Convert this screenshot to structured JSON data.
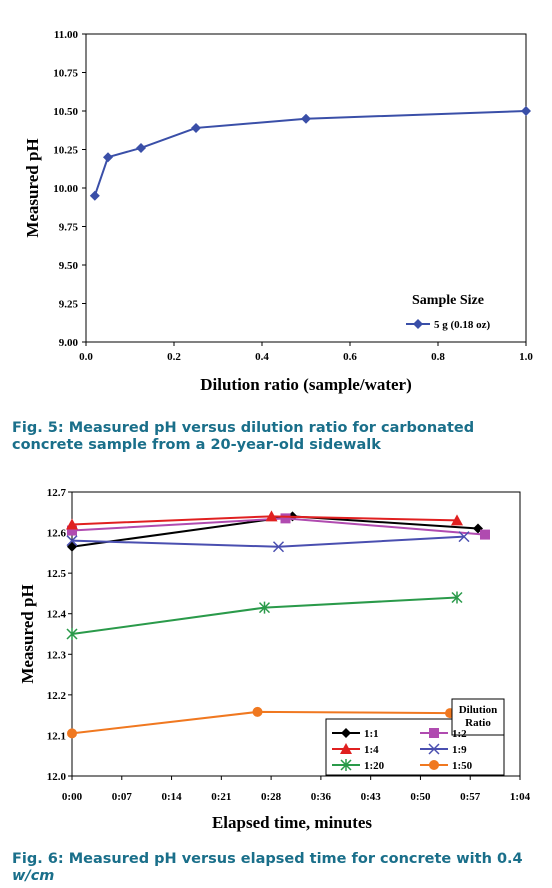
{
  "figures": [
    {
      "caption": "Fig. 5: Measured pH versus dilution ratio for carbonated concrete sample from a 20-year-old sidewalk"
    },
    {
      "caption_prefix": "Fig. 6: Measured pH versus elapsed time for concrete with 0.4 ",
      "caption_italic": "w/cm"
    }
  ],
  "colors": {
    "caption": "#1a6f8a",
    "fig5_series": "#3a4fa8"
  },
  "chart_data": [
    {
      "type": "line",
      "title": "",
      "xlabel": "Dilution ratio (sample/water)",
      "ylabel": "Measured pH",
      "xlim": [
        0,
        1.0
      ],
      "ylim": [
        9.0,
        11.0
      ],
      "x_ticks": [
        "0.0",
        "0.2",
        "0.4",
        "0.6",
        "0.8",
        "1.0"
      ],
      "y_ticks": [
        "9.00",
        "9.25",
        "9.50",
        "9.75",
        "10.00",
        "10.25",
        "10.50",
        "10.75",
        "11.00"
      ],
      "grid": false,
      "legend": {
        "title": "Sample Size",
        "position": "bottom-right"
      },
      "series": [
        {
          "name": "5 g (0.18 oz)",
          "color": "#3a4fa8",
          "marker": "diamond",
          "x": [
            0.02,
            0.05,
            0.125,
            0.25,
            0.5,
            1.0
          ],
          "y": [
            9.95,
            10.2,
            10.26,
            10.39,
            10.45,
            10.5
          ]
        }
      ]
    },
    {
      "type": "line",
      "title": "",
      "xlabel": "Elapsed time, minutes",
      "ylabel": "Measured pH",
      "xlim": [
        0,
        64
      ],
      "ylim": [
        12.0,
        12.7
      ],
      "x_ticks": [
        "0:00",
        "0:07",
        "0:14",
        "0:21",
        "0:28",
        "0:36",
        "0:43",
        "0:50",
        "0:57",
        "1:04"
      ],
      "y_ticks": [
        "12.0",
        "12.1",
        "12.2",
        "12.3",
        "12.4",
        "12.5",
        "12.6",
        "12.7"
      ],
      "grid": false,
      "legend": {
        "title": "Dilution\nRatio",
        "position": "bottom-right"
      },
      "series": [
        {
          "name": "1:1",
          "color": "#000000",
          "marker": "diamond",
          "x": [
            0,
            31.5,
            58
          ],
          "y": [
            12.565,
            12.64,
            12.61
          ]
        },
        {
          "name": "1:2",
          "color": "#b04bb0",
          "marker": "square",
          "x": [
            0,
            30.5,
            59
          ],
          "y": [
            12.605,
            12.635,
            12.595
          ]
        },
        {
          "name": "1:4",
          "color": "#e02020",
          "marker": "triangle",
          "x": [
            0,
            28.5,
            55
          ],
          "y": [
            12.62,
            12.64,
            12.63
          ]
        },
        {
          "name": "1:9",
          "color": "#4a4fb0",
          "marker": "x",
          "x": [
            0,
            29.5,
            56
          ],
          "y": [
            12.58,
            12.565,
            12.59
          ]
        },
        {
          "name": "1:20",
          "color": "#2a9a4a",
          "marker": "star",
          "x": [
            0,
            27.5,
            55
          ],
          "y": [
            12.35,
            12.415,
            12.44
          ]
        },
        {
          "name": "1:50",
          "color": "#f07820",
          "marker": "circle",
          "x": [
            0,
            26.5,
            54
          ],
          "y": [
            12.105,
            12.158,
            12.155
          ]
        }
      ]
    }
  ]
}
